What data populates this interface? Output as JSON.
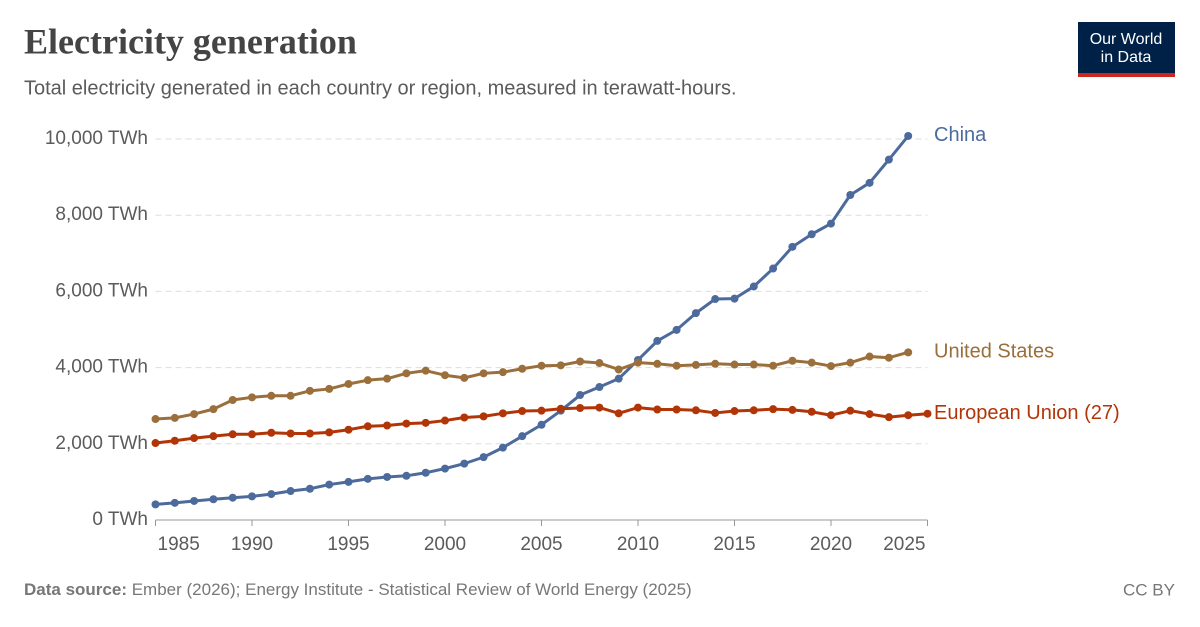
{
  "chart_data": {
    "type": "line",
    "title": "Electricity generation",
    "subtitle": "Total electricity generated in each country or region, measured in terawatt-hours.",
    "logo": [
      "Our World",
      "in Data"
    ],
    "source_label": "Data source:",
    "source": "Ember (2026); Energy Institute - Statistical Review of World Energy (2025)",
    "license": "CC BY",
    "x": [
      1985,
      1986,
      1987,
      1988,
      1989,
      1990,
      1991,
      1992,
      1993,
      1994,
      1995,
      1996,
      1997,
      1998,
      1999,
      2000,
      2001,
      2002,
      2003,
      2004,
      2005,
      2006,
      2007,
      2008,
      2009,
      2010,
      2011,
      2012,
      2013,
      2014,
      2015,
      2016,
      2017,
      2018,
      2019,
      2020,
      2021,
      2022,
      2023,
      2024,
      2025
    ],
    "series": [
      {
        "name": "China",
        "color": "#4c6a9c",
        "values": [
          410,
          450,
          500,
          545,
          585,
          620,
          680,
          760,
          820,
          930,
          1000,
          1080,
          1130,
          1160,
          1240,
          1350,
          1480,
          1650,
          1900,
          2200,
          2500,
          2870,
          3280,
          3490,
          3710,
          4200,
          4700,
          4990,
          5430,
          5800,
          5810,
          6130,
          6600,
          7170,
          7500,
          7780,
          8530,
          8850,
          9460,
          10080,
          null
        ]
      },
      {
        "name": "United States",
        "color": "#9a6f3c",
        "values": [
          2650,
          2680,
          2780,
          2910,
          3150,
          3220,
          3260,
          3260,
          3390,
          3440,
          3570,
          3670,
          3710,
          3850,
          3920,
          3800,
          3730,
          3850,
          3880,
          3970,
          4050,
          4060,
          4160,
          4120,
          3950,
          4130,
          4100,
          4050,
          4070,
          4100,
          4080,
          4080,
          4050,
          4180,
          4130,
          4040,
          4130,
          4290,
          4260,
          4400,
          null
        ]
      },
      {
        "name": "European Union (27)",
        "color": "#b13507",
        "values": [
          2020,
          2080,
          2150,
          2200,
          2250,
          2250,
          2290,
          2270,
          2270,
          2300,
          2370,
          2460,
          2480,
          2530,
          2550,
          2610,
          2690,
          2720,
          2800,
          2860,
          2870,
          2920,
          2940,
          2950,
          2800,
          2950,
          2900,
          2900,
          2880,
          2810,
          2860,
          2880,
          2910,
          2890,
          2840,
          2750,
          2870,
          2780,
          2700,
          2750,
          2790
        ]
      }
    ],
    "xlim": [
      1985,
      2025
    ],
    "xticks": [
      1985,
      1990,
      1995,
      2000,
      2005,
      2010,
      2015,
      2020,
      2025
    ],
    "ylim": [
      0,
      10000
    ],
    "yticks": [
      {
        "value": 0,
        "label": "0 TWh"
      },
      {
        "value": 2000,
        "label": "2,000 TWh"
      },
      {
        "value": 4000,
        "label": "4,000 TWh"
      },
      {
        "value": 6000,
        "label": "6,000 TWh"
      },
      {
        "value": 8000,
        "label": "8,000 TWh"
      },
      {
        "value": 10000,
        "label": "10,000 TWh"
      }
    ],
    "grid": true
  }
}
